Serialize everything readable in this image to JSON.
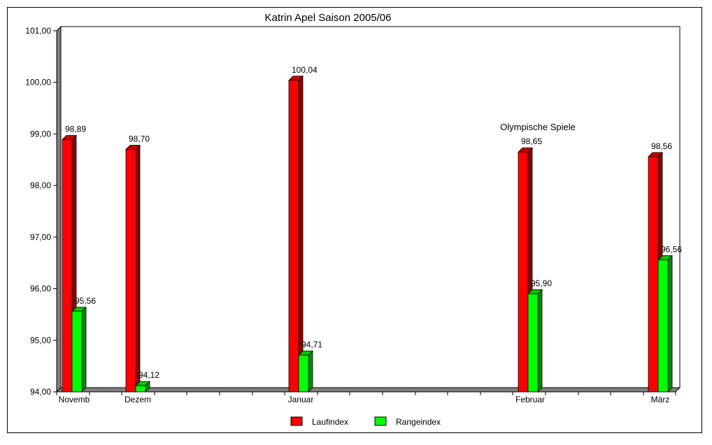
{
  "chart_data": {
    "type": "bar",
    "title": "Katrin Apel Saison 2005/06",
    "xlabel": "",
    "ylabel": "",
    "ylim": [
      94,
      101
    ],
    "yticks": [
      "101,00",
      "100,00",
      "99,00",
      "98,00",
      "97,00",
      "96,00",
      "95,00",
      "94,00"
    ],
    "categories": [
      "Novemb",
      "Dezem",
      "Januar",
      "Februar",
      "März"
    ],
    "series": [
      {
        "name": "Laufindex",
        "color": "#ff0000",
        "values": [
          98.89,
          98.7,
          100.04,
          98.65,
          98.56
        ],
        "labels": [
          "98,89",
          "98,70",
          "100,04",
          "98,65",
          "98,56"
        ]
      },
      {
        "name": "Rangeindex",
        "color": "#00ff00",
        "values": [
          95.56,
          94.12,
          94.71,
          95.9,
          96.56
        ],
        "labels": [
          "95,56",
          "94,12",
          "94,71",
          "95,90",
          "96,56"
        ]
      }
    ],
    "annotations": [
      {
        "text": "Olympische Spiele",
        "category": "Februar"
      }
    ],
    "grid": false,
    "legend_position": "bottom"
  }
}
